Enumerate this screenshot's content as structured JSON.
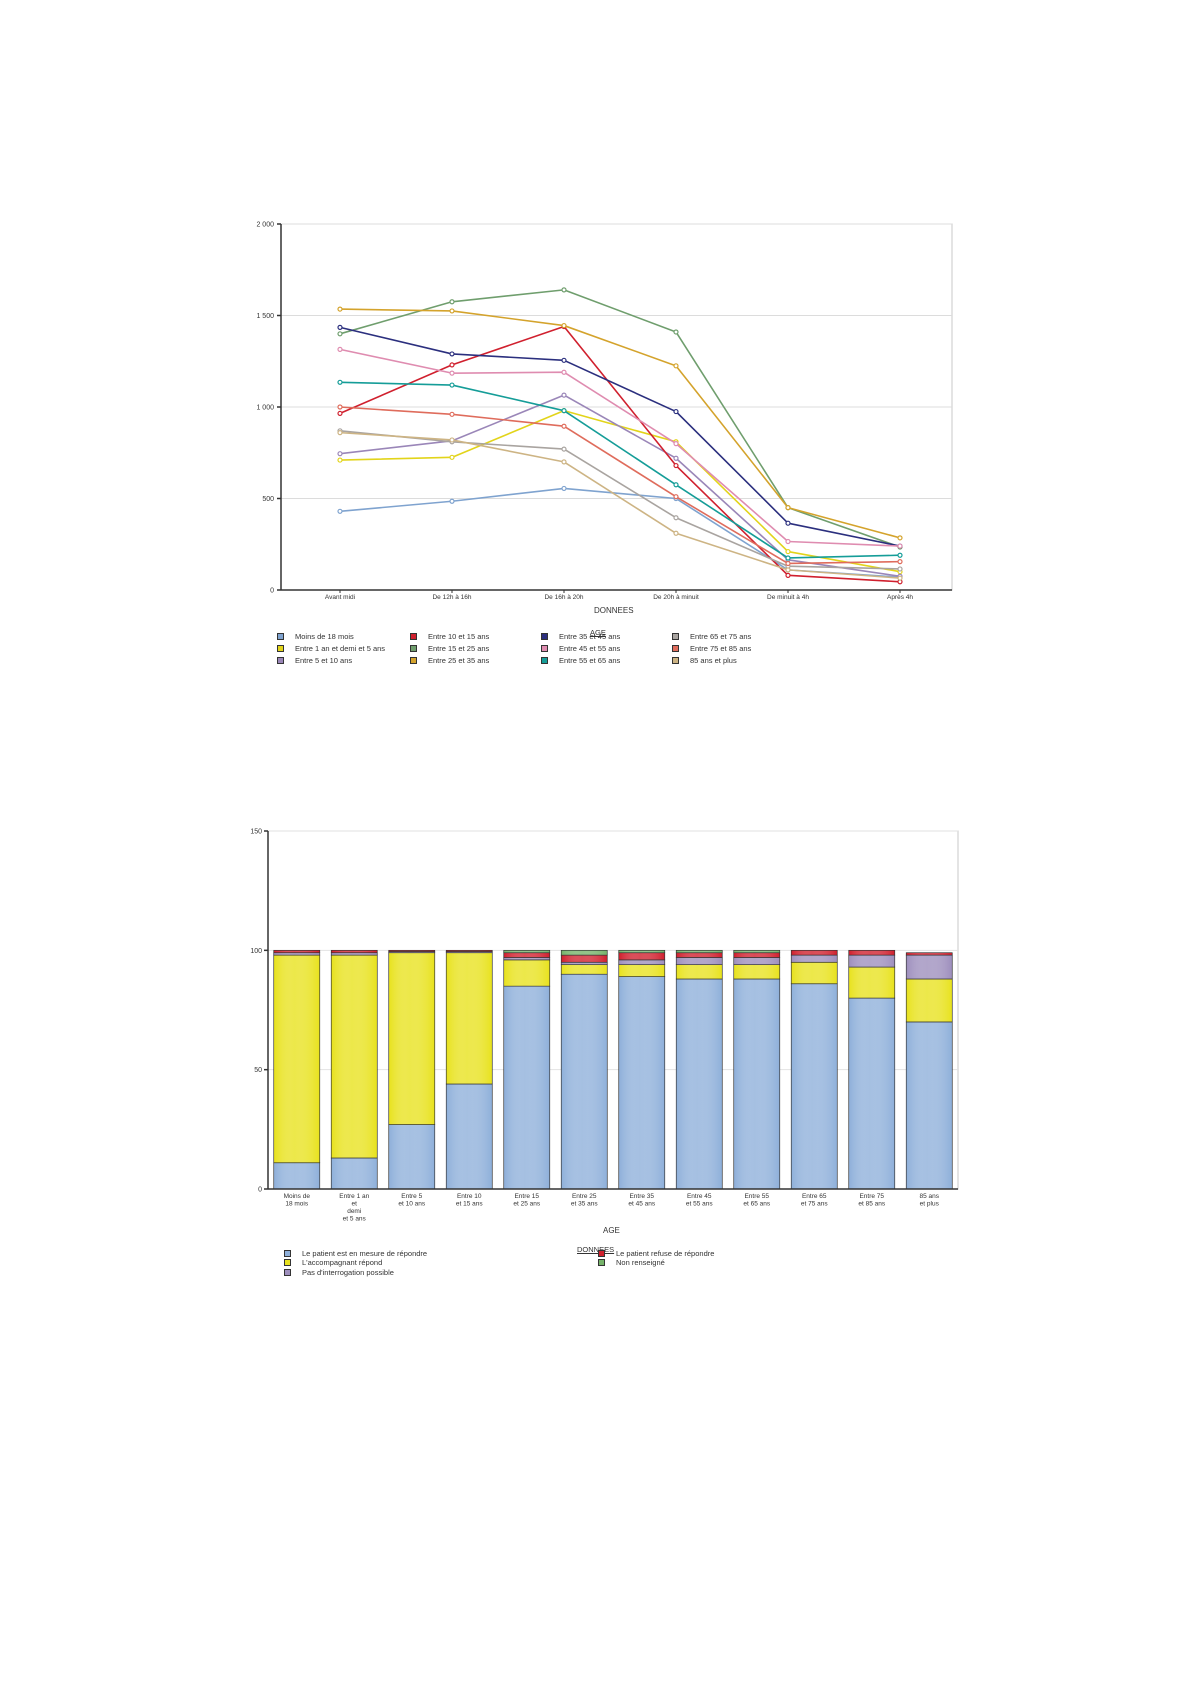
{
  "chart_data": [
    {
      "type": "line",
      "xlabel": "DONNEES",
      "ylabel": "",
      "ylim": [
        0,
        2000
      ],
      "yticks": [
        0,
        500,
        1000,
        1500,
        2000
      ],
      "ytick_labels": [
        "0",
        "500",
        "1 000",
        "1 500",
        "2 000"
      ],
      "grid": true,
      "legend_title": "AGE",
      "legend_position": "bottom",
      "categories": [
        "Avant midi",
        "De 12h à 16h",
        "De 16h à 20h",
        "De 20h à minuit",
        "De minuit à 4h",
        "Après 4h"
      ],
      "series": [
        {
          "name": "Moins de 18 mois",
          "color": "#7fa3cf",
          "values": [
            430,
            485,
            555,
            500,
            110,
            70
          ]
        },
        {
          "name": "Entre 1 an et demi et 5 ans",
          "color": "#e2d41a",
          "values": [
            710,
            725,
            980,
            810,
            210,
            100
          ]
        },
        {
          "name": "Entre 5 et 10 ans",
          "color": "#9a86b8",
          "values": [
            745,
            815,
            1065,
            720,
            165,
            75
          ]
        },
        {
          "name": "Entre 10 et 15 ans",
          "color": "#d0202e",
          "values": [
            965,
            1230,
            1440,
            680,
            80,
            45
          ]
        },
        {
          "name": "Entre 15 et 25 ans",
          "color": "#6f9e6d",
          "values": [
            1400,
            1575,
            1640,
            1410,
            450,
            235
          ]
        },
        {
          "name": "Entre 25 et 35 ans",
          "color": "#d4a32c",
          "values": [
            1535,
            1525,
            1445,
            1225,
            450,
            285
          ]
        },
        {
          "name": "Entre 35 et 45 ans",
          "color": "#2b2f7e",
          "values": [
            1435,
            1290,
            1255,
            975,
            365,
            240
          ]
        },
        {
          "name": "Entre 45 et 55 ans",
          "color": "#df8cb0",
          "values": [
            1315,
            1185,
            1190,
            800,
            265,
            240
          ]
        },
        {
          "name": "Entre 55 et 65 ans",
          "color": "#159d98",
          "values": [
            1135,
            1120,
            980,
            575,
            175,
            190
          ]
        },
        {
          "name": "Entre 65 et 75 ans",
          "color": "#a9a4a0",
          "values": [
            870,
            810,
            770,
            395,
            130,
            115
          ]
        },
        {
          "name": "Entre 75 et 85 ans",
          "color": "#df6c5c",
          "values": [
            1000,
            960,
            895,
            510,
            145,
            155
          ]
        },
        {
          "name": "85 ans et plus",
          "color": "#cdb484",
          "values": [
            860,
            820,
            700,
            310,
            110,
            65
          ]
        }
      ]
    },
    {
      "type": "bar",
      "stacked": true,
      "xlabel": "AGE",
      "ylabel": "",
      "ylim": [
        0,
        150
      ],
      "yticks": [
        0,
        50,
        100,
        150
      ],
      "ytick_labels": [
        "0",
        "50",
        "100",
        "150"
      ],
      "grid": true,
      "legend_title": "DONNEES",
      "legend_position": "bottom",
      "categories": [
        [
          "Moins de",
          "18 mois"
        ],
        [
          "Entre 1 an",
          "et",
          "demi",
          "et 5 ans"
        ],
        [
          "Entre 5",
          "et 10 ans"
        ],
        [
          "Entre 10",
          "et 15 ans"
        ],
        [
          "Entre 15",
          "et 25 ans"
        ],
        [
          "Entre 25",
          "et 35 ans"
        ],
        [
          "Entre 35",
          "et 45 ans"
        ],
        [
          "Entre 45",
          "et 55 ans"
        ],
        [
          "Entre 55",
          "et 65 ans"
        ],
        [
          "Entre 65",
          "et 75 ans"
        ],
        [
          "Entre 75",
          "et 85 ans"
        ],
        [
          "85 ans",
          "et plus"
        ]
      ],
      "series": [
        {
          "name": "Le patient est en mesure de répondre",
          "color": "#8fb0da",
          "values": [
            11,
            13,
            27,
            44,
            85,
            90,
            89,
            88,
            88,
            86,
            80,
            70
          ]
        },
        {
          "name": "L'accompagnant répond",
          "color": "#e8e21e",
          "values": [
            87,
            85,
            72,
            55,
            11,
            4,
            5,
            6,
            6,
            9,
            13,
            18
          ]
        },
        {
          "name": "Pas d'interrogation possible",
          "color": "#9e8fbd",
          "values": [
            1,
            1,
            0.5,
            0.5,
            1,
            1,
            2,
            3,
            3,
            3,
            5,
            10
          ]
        },
        {
          "name": "Le patient refuse de répondre",
          "color": "#d0202e",
          "values": [
            1,
            1,
            0.5,
            0.5,
            2,
            3,
            3,
            2,
            2,
            2,
            2,
            1
          ]
        },
        {
          "name": "Non renseigné",
          "color": "#76b36a",
          "values": [
            0,
            0,
            0,
            0,
            1,
            2,
            1,
            1,
            1,
            0,
            0,
            0
          ]
        }
      ]
    }
  ]
}
